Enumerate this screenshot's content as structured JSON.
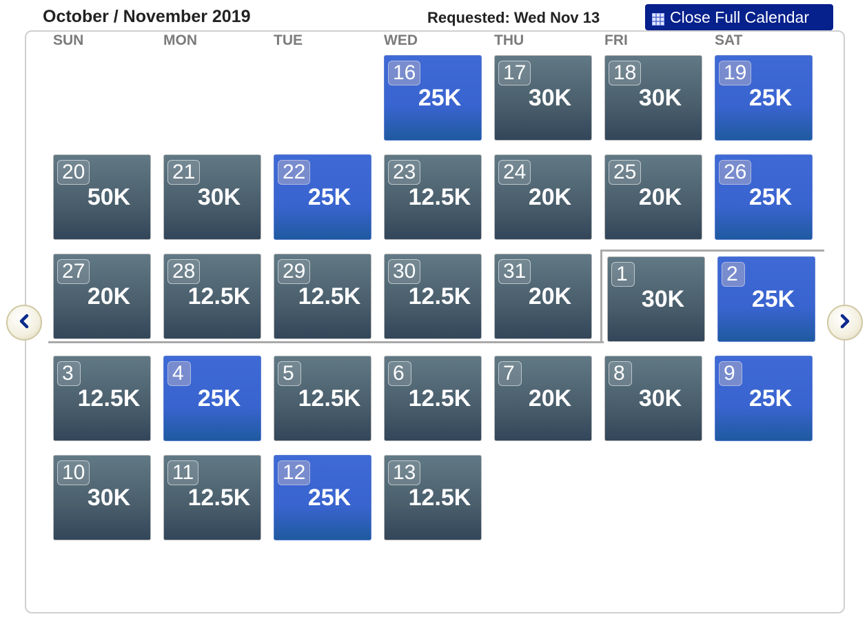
{
  "header": {
    "title": "October / November 2019",
    "requested": "Requested: Wed Nov 13",
    "close_label": "Close Full Calendar"
  },
  "weekdays": [
    "SUN",
    "MON",
    "TUE",
    "WED",
    "THU",
    "FRI",
    "SAT"
  ],
  "days": [
    {
      "day": "16",
      "price": "25K",
      "low": true
    },
    {
      "day": "17",
      "price": "30K",
      "low": false
    },
    {
      "day": "18",
      "price": "30K",
      "low": false
    },
    {
      "day": "19",
      "price": "25K",
      "low": true
    },
    {
      "day": "20",
      "price": "50K",
      "low": false
    },
    {
      "day": "21",
      "price": "30K",
      "low": false
    },
    {
      "day": "22",
      "price": "25K",
      "low": true
    },
    {
      "day": "23",
      "price": "12.5K",
      "low": false
    },
    {
      "day": "24",
      "price": "20K",
      "low": false
    },
    {
      "day": "25",
      "price": "20K",
      "low": false
    },
    {
      "day": "26",
      "price": "25K",
      "low": true
    },
    {
      "day": "27",
      "price": "20K",
      "low": false
    },
    {
      "day": "28",
      "price": "12.5K",
      "low": false
    },
    {
      "day": "29",
      "price": "12.5K",
      "low": false
    },
    {
      "day": "30",
      "price": "12.5K",
      "low": false
    },
    {
      "day": "31",
      "price": "20K",
      "low": false
    },
    {
      "day": "1",
      "price": "30K",
      "low": false
    },
    {
      "day": "2",
      "price": "25K",
      "low": true
    },
    {
      "day": "3",
      "price": "12.5K",
      "low": false
    },
    {
      "day": "4",
      "price": "25K",
      "low": true
    },
    {
      "day": "5",
      "price": "12.5K",
      "low": false
    },
    {
      "day": "6",
      "price": "12.5K",
      "low": false
    },
    {
      "day": "7",
      "price": "20K",
      "low": false
    },
    {
      "day": "8",
      "price": "30K",
      "low": false
    },
    {
      "day": "9",
      "price": "25K",
      "low": true
    },
    {
      "day": "10",
      "price": "30K",
      "low": false
    },
    {
      "day": "11",
      "price": "12.5K",
      "low": false
    },
    {
      "day": "12",
      "price": "25K",
      "low": true
    },
    {
      "day": "13",
      "price": "12.5K",
      "low": false
    }
  ],
  "colors": {
    "regular": "#4a5e6c",
    "low": "#3a65d0",
    "button": "#06208c"
  },
  "icons": {
    "prev": "chevron-left-icon",
    "next": "chevron-right-icon",
    "calendar": "calendar-grid-icon"
  }
}
